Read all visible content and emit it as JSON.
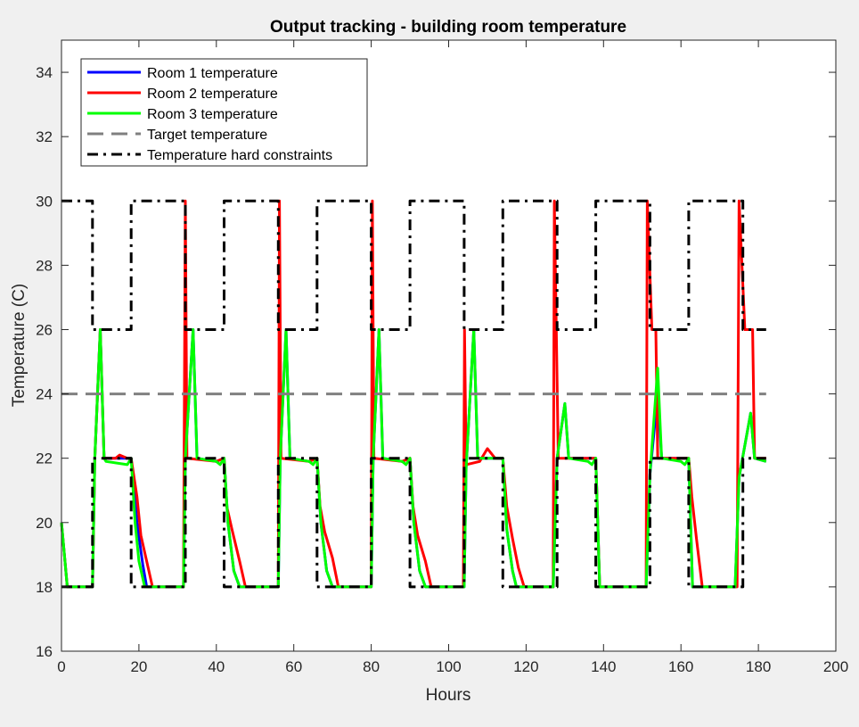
{
  "chart_data": {
    "type": "line",
    "title": "Output tracking - building room temperature",
    "xlabel": "Hours",
    "ylabel": "Temperature (C)",
    "xlim": [
      0,
      200
    ],
    "ylim": [
      16,
      35
    ],
    "xticks": [
      0,
      20,
      40,
      60,
      80,
      100,
      120,
      140,
      160,
      180,
      200
    ],
    "yticks": [
      16,
      18,
      20,
      22,
      24,
      26,
      28,
      30,
      32,
      34
    ],
    "grid": false,
    "legend_position": "top-left",
    "series": [
      {
        "name": "Room 1 temperature",
        "color": "#0000ff",
        "style": "solid",
        "points": [
          [
            0,
            20
          ],
          [
            1.5,
            18
          ],
          [
            8,
            18
          ],
          [
            8.6,
            22
          ],
          [
            10,
            26
          ],
          [
            11,
            22
          ],
          [
            18,
            22
          ],
          [
            19.5,
            20
          ],
          [
            21,
            18.7
          ],
          [
            22,
            18
          ],
          [
            31.5,
            18
          ],
          [
            32,
            22
          ],
          [
            34,
            26
          ],
          [
            35,
            22
          ],
          [
            40,
            21.9
          ],
          [
            42,
            22
          ],
          [
            43,
            20
          ],
          [
            44.5,
            18.5
          ],
          [
            46,
            18
          ],
          [
            56,
            18
          ],
          [
            56.5,
            22
          ],
          [
            58,
            26
          ],
          [
            59,
            22
          ],
          [
            64,
            21.9
          ],
          [
            66,
            22
          ],
          [
            67,
            20
          ],
          [
            68.5,
            18.5
          ],
          [
            70,
            18
          ],
          [
            80,
            18
          ],
          [
            80.5,
            22
          ],
          [
            82,
            26
          ],
          [
            83,
            22
          ],
          [
            88,
            21.9
          ],
          [
            90,
            22
          ],
          [
            91,
            20
          ],
          [
            92.5,
            18.5
          ],
          [
            94,
            18
          ],
          [
            104,
            18
          ],
          [
            104.5,
            21.7
          ],
          [
            106.5,
            26
          ],
          [
            107.5,
            22
          ],
          [
            114,
            22
          ],
          [
            115,
            19.8
          ],
          [
            116.5,
            18.5
          ],
          [
            117.5,
            18
          ],
          [
            127,
            18
          ],
          [
            128,
            22
          ],
          [
            130,
            23.7
          ],
          [
            131,
            22
          ],
          [
            138,
            22
          ],
          [
            139,
            18
          ],
          [
            151,
            18
          ],
          [
            152,
            21.5
          ],
          [
            154,
            24
          ],
          [
            155,
            22
          ],
          [
            162,
            22
          ],
          [
            163,
            18
          ],
          [
            174,
            18
          ],
          [
            175,
            21.4
          ],
          [
            178,
            23.4
          ],
          [
            179,
            22
          ],
          [
            182,
            21.9
          ]
        ]
      },
      {
        "name": "Room 2 temperature",
        "color": "#ff0000",
        "style": "solid",
        "points": [
          [
            0,
            20
          ],
          [
            1.5,
            18
          ],
          [
            8,
            18
          ],
          [
            8.6,
            22
          ],
          [
            10,
            26
          ],
          [
            11,
            22
          ],
          [
            14,
            22
          ],
          [
            15,
            22.1
          ],
          [
            17,
            22
          ],
          [
            18,
            22
          ],
          [
            19.5,
            20.8
          ],
          [
            20.5,
            19.6
          ],
          [
            22,
            18.8
          ],
          [
            23.5,
            18
          ],
          [
            31.5,
            18
          ],
          [
            32,
            30
          ],
          [
            32.4,
            22
          ],
          [
            40,
            21.9
          ],
          [
            42,
            22
          ],
          [
            42.7,
            20.5
          ],
          [
            44,
            19.8
          ],
          [
            46,
            18.8
          ],
          [
            47.5,
            18
          ],
          [
            56,
            18
          ],
          [
            56.3,
            30
          ],
          [
            56.7,
            22
          ],
          [
            64,
            21.9
          ],
          [
            66,
            22
          ],
          [
            66.8,
            20.5
          ],
          [
            68,
            19.7
          ],
          [
            70,
            18.9
          ],
          [
            71.5,
            18
          ],
          [
            80,
            18
          ],
          [
            80.3,
            30
          ],
          [
            80.7,
            22
          ],
          [
            88,
            21.9
          ],
          [
            90,
            22
          ],
          [
            90.8,
            20.5
          ],
          [
            92,
            19.6
          ],
          [
            94,
            18.8
          ],
          [
            95.5,
            18
          ],
          [
            103.8,
            18
          ],
          [
            104.1,
            26
          ],
          [
            104.5,
            21.8
          ],
          [
            108,
            21.9
          ],
          [
            110,
            22.3
          ],
          [
            112,
            22
          ],
          [
            114,
            22
          ],
          [
            115,
            20.5
          ],
          [
            116.5,
            19.5
          ],
          [
            118,
            18.6
          ],
          [
            119.5,
            18
          ],
          [
            127,
            18
          ],
          [
            127.3,
            30
          ],
          [
            127.8,
            26
          ],
          [
            128.3,
            22
          ],
          [
            138,
            22
          ],
          [
            139,
            18
          ],
          [
            151,
            18
          ],
          [
            151.3,
            30
          ],
          [
            152.5,
            26
          ],
          [
            153.5,
            26
          ],
          [
            154,
            22
          ],
          [
            162,
            22
          ],
          [
            162.8,
            20.8
          ],
          [
            164,
            19.5
          ],
          [
            165.5,
            18
          ],
          [
            174.5,
            18
          ],
          [
            175,
            30
          ],
          [
            176.5,
            26
          ],
          [
            178.5,
            26
          ],
          [
            179,
            22
          ],
          [
            182,
            22
          ]
        ]
      },
      {
        "name": "Room 3 temperature",
        "color": "#00ff00",
        "style": "solid",
        "points": [
          [
            0,
            20
          ],
          [
            1.5,
            18
          ],
          [
            8,
            18
          ],
          [
            8.6,
            22
          ],
          [
            10,
            26
          ],
          [
            11,
            22
          ],
          [
            11.5,
            21.9
          ],
          [
            17,
            21.8
          ],
          [
            18,
            22
          ],
          [
            19,
            20
          ],
          [
            20,
            18.8
          ],
          [
            21.5,
            18
          ],
          [
            31.5,
            18
          ],
          [
            32,
            22
          ],
          [
            34,
            26
          ],
          [
            35,
            22
          ],
          [
            40,
            21.9
          ],
          [
            41,
            21.8
          ],
          [
            42,
            22
          ],
          [
            43,
            20
          ],
          [
            44.5,
            18.5
          ],
          [
            46,
            18
          ],
          [
            56,
            18
          ],
          [
            56.5,
            22
          ],
          [
            58,
            26
          ],
          [
            59,
            22
          ],
          [
            64,
            21.9
          ],
          [
            65,
            21.8
          ],
          [
            66,
            22
          ],
          [
            67,
            20
          ],
          [
            68.5,
            18.5
          ],
          [
            70,
            18
          ],
          [
            80,
            18
          ],
          [
            80.5,
            22
          ],
          [
            82,
            26
          ],
          [
            83,
            22
          ],
          [
            88,
            21.9
          ],
          [
            89,
            21.8
          ],
          [
            90,
            22
          ],
          [
            91,
            20
          ],
          [
            92.5,
            18.5
          ],
          [
            94,
            18
          ],
          [
            104,
            18
          ],
          [
            104.5,
            21.7
          ],
          [
            106.5,
            26
          ],
          [
            107.5,
            22
          ],
          [
            114,
            22
          ],
          [
            115,
            19.8
          ],
          [
            116.5,
            18.5
          ],
          [
            117.5,
            18
          ],
          [
            127,
            18
          ],
          [
            128,
            22
          ],
          [
            130,
            23.7
          ],
          [
            131,
            22
          ],
          [
            136,
            21.9
          ],
          [
            137,
            21.8
          ],
          [
            138,
            22
          ],
          [
            139,
            18
          ],
          [
            151,
            18
          ],
          [
            152,
            21.5
          ],
          [
            154,
            24.8
          ],
          [
            155,
            22
          ],
          [
            160,
            21.9
          ],
          [
            161,
            21.8
          ],
          [
            162,
            22
          ],
          [
            163,
            18
          ],
          [
            174,
            18
          ],
          [
            175,
            21.4
          ],
          [
            178,
            23.4
          ],
          [
            179,
            22
          ],
          [
            182,
            21.9
          ]
        ]
      },
      {
        "name": "Target temperature",
        "color": "#808080",
        "style": "dashed",
        "points": [
          [
            0,
            24
          ],
          [
            182,
            24
          ]
        ]
      },
      {
        "name": "Temperature hard constraints",
        "color": "#000000",
        "style": "dashdot",
        "segments": [
          [
            [
              0,
              30
            ],
            [
              8,
              30
            ],
            [
              8,
              26
            ],
            [
              18,
              26
            ],
            [
              18,
              30
            ],
            [
              32,
              30
            ],
            [
              32,
              26
            ],
            [
              42,
              26
            ],
            [
              42,
              30
            ],
            [
              56,
              30
            ],
            [
              56,
              26
            ],
            [
              66,
              26
            ],
            [
              66,
              30
            ],
            [
              80,
              30
            ],
            [
              80,
              26
            ],
            [
              90,
              26
            ],
            [
              90,
              30
            ],
            [
              104,
              30
            ],
            [
              104,
              26
            ],
            [
              114,
              26
            ],
            [
              114,
              30
            ],
            [
              128,
              30
            ],
            [
              128,
              26
            ],
            [
              138,
              26
            ],
            [
              138,
              30
            ],
            [
              152,
              30
            ],
            [
              152,
              26
            ],
            [
              162,
              26
            ],
            [
              162,
              30
            ],
            [
              176,
              30
            ],
            [
              176,
              26
            ],
            [
              182,
              26
            ]
          ],
          [
            [
              0,
              18
            ],
            [
              8,
              18
            ],
            [
              8,
              22
            ],
            [
              18,
              22
            ],
            [
              18,
              18
            ],
            [
              32,
              18
            ],
            [
              32,
              22
            ],
            [
              42,
              22
            ],
            [
              42,
              18
            ],
            [
              56,
              18
            ],
            [
              56,
              22
            ],
            [
              66,
              22
            ],
            [
              66,
              18
            ],
            [
              80,
              18
            ],
            [
              80,
              22
            ],
            [
              90,
              22
            ],
            [
              90,
              18
            ],
            [
              104,
              18
            ],
            [
              104,
              22
            ],
            [
              114,
              22
            ],
            [
              114,
              18
            ],
            [
              128,
              18
            ],
            [
              128,
              22
            ],
            [
              138,
              22
            ],
            [
              138,
              18
            ],
            [
              152,
              18
            ],
            [
              152,
              22
            ],
            [
              162,
              22
            ],
            [
              162,
              18
            ],
            [
              176,
              18
            ],
            [
              176,
              22
            ],
            [
              182,
              22
            ]
          ]
        ]
      }
    ]
  }
}
